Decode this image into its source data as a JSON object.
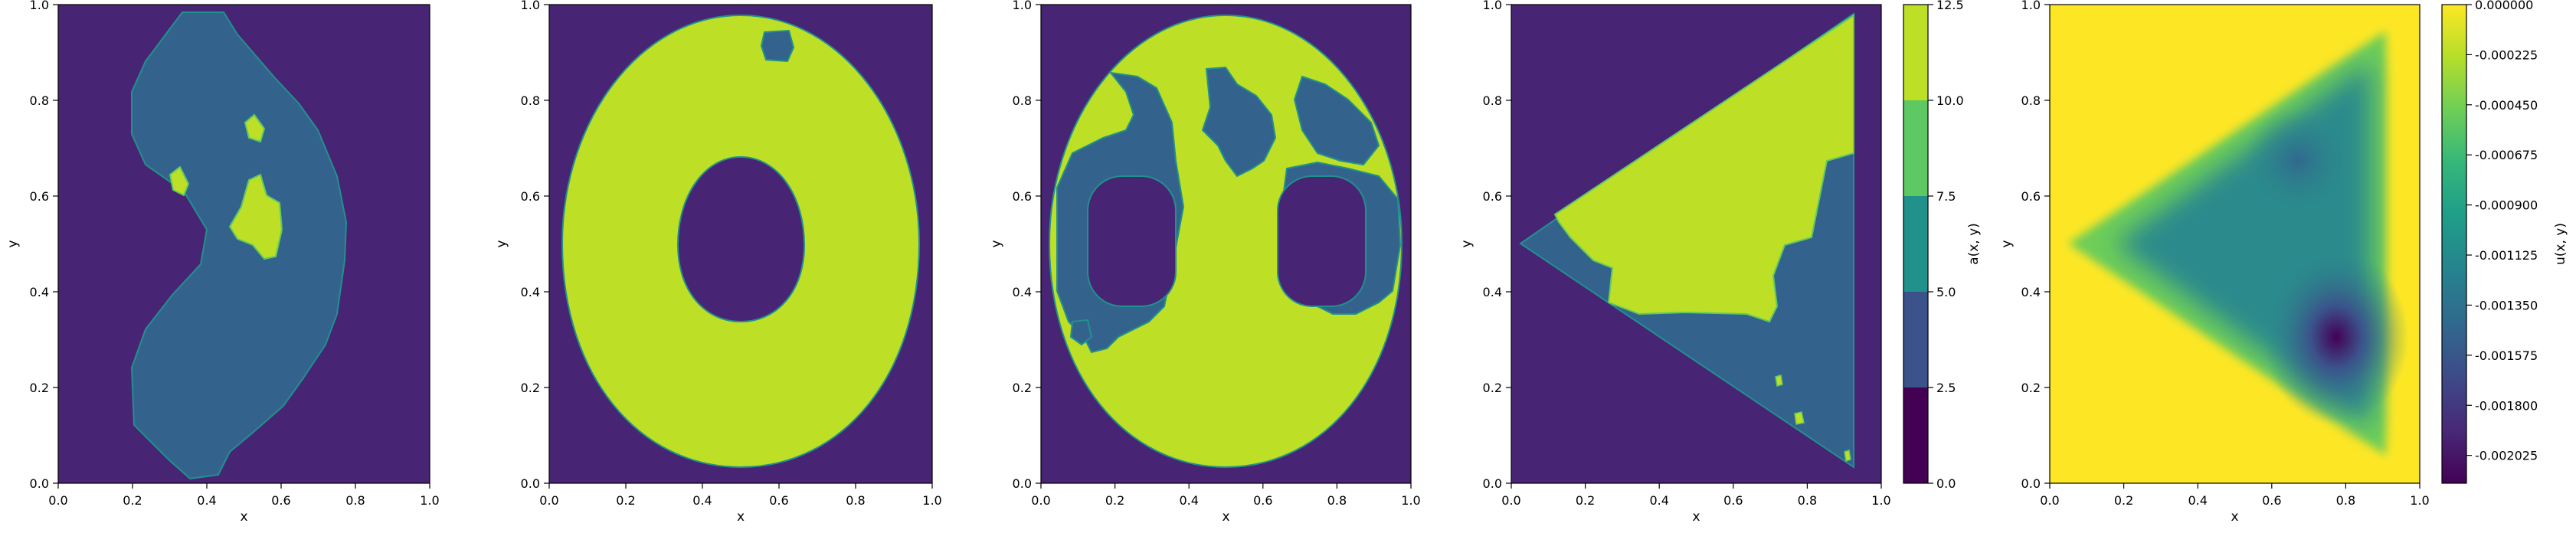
{
  "chart_data": [
    {
      "type": "heatmap",
      "panel": "panel-1",
      "xlabel": "x",
      "ylabel": "y",
      "xlim": [
        0.0,
        1.0
      ],
      "ylim": [
        0.0,
        1.0
      ],
      "x_ticks": [
        "0.0",
        "0.2",
        "0.4",
        "0.6",
        "0.8",
        "1.0"
      ],
      "y_ticks": [
        "0.0",
        "0.2",
        "0.4",
        "0.6",
        "0.8",
        "1.0"
      ],
      "shape": "crescent",
      "background_value": 0.0,
      "region_value": 3.75,
      "islands_value": 11.25
    },
    {
      "type": "heatmap",
      "panel": "panel-2",
      "xlabel": "x",
      "ylabel": "y",
      "xlim": [
        0.0,
        1.0
      ],
      "ylim": [
        0.0,
        1.0
      ],
      "x_ticks": [
        "0.0",
        "0.2",
        "0.4",
        "0.6",
        "0.8",
        "1.0"
      ],
      "y_ticks": [
        "0.0",
        "0.2",
        "0.4",
        "0.6",
        "0.8",
        "1.0"
      ],
      "shape": "annulus",
      "background_value": 0.0,
      "region_value": 11.25,
      "islands_value": 3.75
    },
    {
      "type": "heatmap",
      "panel": "panel-3",
      "xlabel": "x",
      "ylabel": "y",
      "xlim": [
        0.0,
        1.0
      ],
      "ylim": [
        0.0,
        1.0
      ],
      "x_ticks": [
        "0.0",
        "0.2",
        "0.4",
        "0.6",
        "0.8",
        "1.0"
      ],
      "y_ticks": [
        "0.0",
        "0.2",
        "0.4",
        "0.6",
        "0.8",
        "1.0"
      ],
      "shape": "disk-with-two-holes",
      "background_value": 0.0,
      "region_value": 11.25,
      "islands_value": 3.75
    },
    {
      "type": "heatmap",
      "panel": "panel-4",
      "xlabel": "x",
      "ylabel": "y",
      "xlim": [
        0.0,
        1.0
      ],
      "ylim": [
        0.0,
        1.0
      ],
      "x_ticks": [
        "0.0",
        "0.2",
        "0.4",
        "0.6",
        "0.8",
        "1.0"
      ],
      "y_ticks": [
        "0.0",
        "0.2",
        "0.4",
        "0.6",
        "0.8",
        "1.0"
      ],
      "shape": "triangle",
      "background_value": 0.0,
      "region_value": 3.75,
      "islands_value": 11.25,
      "colorbar": {
        "label": "a(x, y)",
        "ticks": [
          "0.0",
          "2.5",
          "5.0",
          "7.5",
          "10.0",
          "12.5"
        ],
        "levels": [
          0.0,
          2.5,
          5.0,
          7.5,
          10.0,
          12.5
        ],
        "colors": [
          "#440154",
          "#3b528b",
          "#21918c",
          "#5ec962",
          "#bddf26"
        ]
      }
    },
    {
      "type": "heatmap",
      "panel": "panel-5",
      "xlabel": "x",
      "ylabel": "y",
      "xlim": [
        0.0,
        1.0
      ],
      "ylim": [
        0.0,
        1.0
      ],
      "x_ticks": [
        "0.0",
        "0.2",
        "0.4",
        "0.6",
        "0.8",
        "1.0"
      ],
      "y_ticks": [
        "0.0",
        "0.2",
        "0.4",
        "0.6",
        "0.8",
        "1.0"
      ],
      "shape": "triangle-solution",
      "background_value": 0.0,
      "minimum_value": -0.00215,
      "colorbar": {
        "label": "u(x, y)",
        "ticks": [
          "0.000000",
          "-0.000225",
          "-0.000450",
          "-0.000675",
          "-0.000900",
          "-0.001125",
          "-0.001350",
          "-0.001575",
          "-0.001800",
          "-0.002025"
        ],
        "range": [
          -0.00215,
          0.0
        ],
        "colormap": "viridis"
      }
    }
  ]
}
